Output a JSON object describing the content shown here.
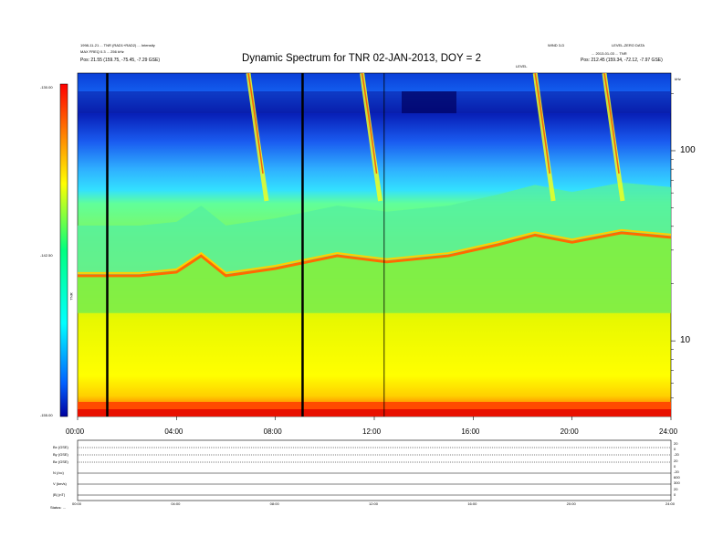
{
  "header": {
    "top_left": [
      "1998-11-21 ... TNR (RAD1+RAD2) ... Intensity",
      "MAX FREQ 0.3 ... 256 kHz",
      "Pos: 21.55 (159.75, -75.45, -7.29 GSE)"
    ],
    "top_right": [
      "WIND 3-D",
      "LEVEL-ZERO DATA",
      "... 2013-01-03 ... TNR",
      "Pos: 212.45 (159.34, -72.12, -7.97 GSE)"
    ],
    "freq_unit_label": "kHz",
    "upper_marker": "LEVEL"
  },
  "chart_data": {
    "type": "heatmap",
    "title": "Dynamic Spectrum for TNR 02-JAN-2013, DOY = 2",
    "x_range_hours": [
      0,
      24
    ],
    "x_tick_labels": [
      "00:00",
      "04:00",
      "08:00",
      "12:00",
      "16:00",
      "20:00",
      "24:00"
    ],
    "x_tick_hours": [
      0,
      4,
      8,
      12,
      16,
      20,
      24
    ],
    "y_axis_scale": "log",
    "y_range_khz": [
      4,
      256
    ],
    "y_tick_labels": [
      "100",
      "10"
    ],
    "y_tick_values_khz": [
      100,
      10
    ],
    "colorbar": {
      "tick_labels": [
        "-130.00",
        "-142.50",
        "-155.00"
      ],
      "label": "TNR",
      "colors": [
        "#ff0000",
        "#ffff00",
        "#00ffff",
        "#0000a0"
      ]
    },
    "gaps_black_lines_hours": [
      1.2,
      9.1
    ],
    "thin_lines_hours": [
      12.4
    ],
    "plasma_line": [
      {
        "t": 0.0,
        "khz": 22
      },
      {
        "t": 2.5,
        "khz": 22
      },
      {
        "t": 4.0,
        "khz": 23
      },
      {
        "t": 5.0,
        "khz": 28
      },
      {
        "t": 6.0,
        "khz": 22
      },
      {
        "t": 8.0,
        "khz": 24
      },
      {
        "t": 10.5,
        "khz": 28
      },
      {
        "t": 12.5,
        "khz": 26
      },
      {
        "t": 15.0,
        "khz": 28
      },
      {
        "t": 17.0,
        "khz": 32
      },
      {
        "t": 18.5,
        "khz": 36
      },
      {
        "t": 20.0,
        "khz": 33
      },
      {
        "t": 22.0,
        "khz": 37
      },
      {
        "t": 24.0,
        "khz": 35
      }
    ],
    "type_iii_bursts_hours": [
      7.2,
      11.8,
      18.8,
      21.6
    ]
  },
  "bottom_panel": {
    "row_labels": [
      "Bx (GSE)",
      "By (GSE)",
      "Bz (GSE)",
      "N (/cc)",
      "V (km/s)",
      "|B| (nT)"
    ],
    "right_scale": [
      "20",
      "0",
      "-20",
      "20",
      "0",
      "-20",
      "600",
      "300",
      "20",
      "0"
    ],
    "x_tick_labels": [
      "00:00",
      "04:00",
      "08:00",
      "12:00",
      "16:00",
      "20:00",
      "24:00"
    ],
    "footer_label": "Status: ..."
  }
}
